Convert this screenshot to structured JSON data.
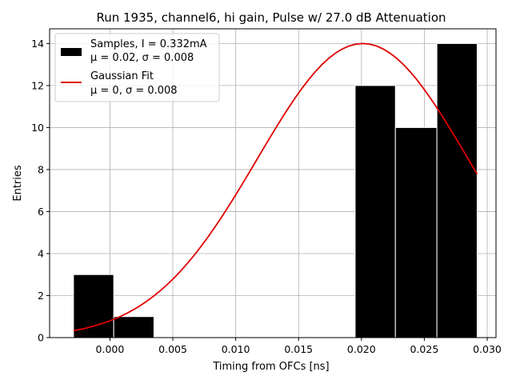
{
  "chart_data": {
    "type": "bar",
    "title": "Run 1935, channel6, hi gain, Pulse w/ 27.0 dB Attenuation",
    "xlabel": "Timing from OFCs [ns]",
    "ylabel": "Entries",
    "xlim": [
      -0.0048,
      0.0307
    ],
    "ylim": [
      0,
      14.7
    ],
    "grid": true,
    "legend_position": "top-left",
    "x_ticks": [
      0.0,
      0.005,
      0.01,
      0.015,
      0.02,
      0.025,
      0.03
    ],
    "x_tick_labels": [
      "0.000",
      "0.005",
      "0.010",
      "0.015",
      "0.020",
      "0.025",
      "0.030"
    ],
    "y_ticks": [
      0,
      2,
      4,
      6,
      8,
      10,
      12,
      14
    ],
    "y_tick_labels": [
      "0",
      "2",
      "4",
      "6",
      "8",
      "10",
      "12",
      "14"
    ],
    "histogram": {
      "name": "Samples, I = 0.332mA",
      "stats": "μ = 0.02, σ = 0.008",
      "color": "#000000",
      "edge_color": "#ffffff",
      "bins": [
        {
          "left": -0.0029,
          "right": 0.0003,
          "count": 3
        },
        {
          "left": 0.0003,
          "right": 0.0035,
          "count": 1
        },
        {
          "left": 0.0035,
          "right": 0.0067,
          "count": 0
        },
        {
          "left": 0.0067,
          "right": 0.0099,
          "count": 0
        },
        {
          "left": 0.0099,
          "right": 0.0131,
          "count": 0
        },
        {
          "left": 0.0131,
          "right": 0.0163,
          "count": 0
        },
        {
          "left": 0.0163,
          "right": 0.0195,
          "count": 0
        },
        {
          "left": 0.0195,
          "right": 0.0227,
          "count": 12
        },
        {
          "left": 0.0227,
          "right": 0.026,
          "count": 10
        },
        {
          "left": 0.026,
          "right": 0.0292,
          "count": 14
        }
      ]
    },
    "fit": {
      "name": "Gaussian Fit",
      "stats": "μ = 0, σ = 0.008",
      "color": "#e00000",
      "amplitude": 14.0,
      "mean": 0.0201,
      "sigma": 0.0084,
      "x_range": [
        -0.0029,
        0.0292
      ]
    }
  }
}
